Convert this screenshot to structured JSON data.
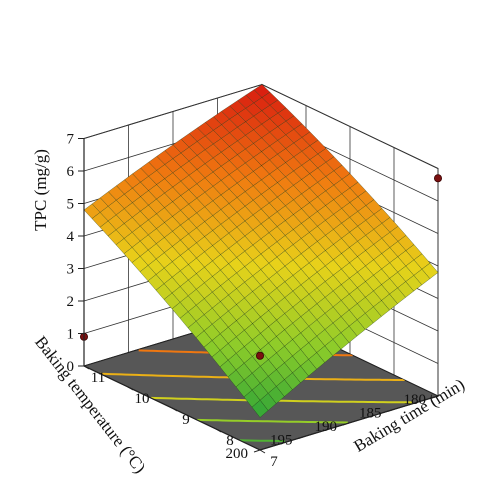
{
  "chart_data": {
    "type": "surface",
    "zlabel": "TPC (mg/g)",
    "xlabel": "Baking time (min)",
    "ylabel": "Baking temperature (°C)",
    "z_ticks": [
      "0",
      "1",
      "2",
      "3",
      "4",
      "5",
      "6",
      "7"
    ],
    "time_ticks": [
      "7",
      "8",
      "9",
      "10",
      "11"
    ],
    "temperature_ticks": [
      "180",
      "185",
      "190",
      "195",
      "200"
    ],
    "zlim": [
      0,
      7
    ],
    "time_range": [
      7,
      11
    ],
    "temperature_range": [
      180,
      200
    ],
    "surface_corners": [
      {
        "temperature": 180,
        "time": 7,
        "tpc": 7.0
      },
      {
        "temperature": 180,
        "time": 11,
        "tpc": 3.8
      },
      {
        "temperature": 200,
        "time": 7,
        "tpc": 4.8
      },
      {
        "temperature": 200,
        "time": 11,
        "tpc": 1.0
      }
    ],
    "grid": true,
    "contour_floor": true,
    "colormap": [
      "#1f9e3a",
      "#8ccc2a",
      "#e8d21a",
      "#f07a10",
      "#d81a10"
    ],
    "floor_color": "#575757",
    "design_points": [
      {
        "temperature": 180,
        "time": 7,
        "tpc": 6.7
      },
      {
        "temperature": 180,
        "time": 11,
        "tpc": 4.6
      },
      {
        "temperature": 200,
        "time": 11,
        "tpc": 0.9
      },
      {
        "temperature": 200,
        "time": 7,
        "tpc": 2.9
      }
    ]
  }
}
